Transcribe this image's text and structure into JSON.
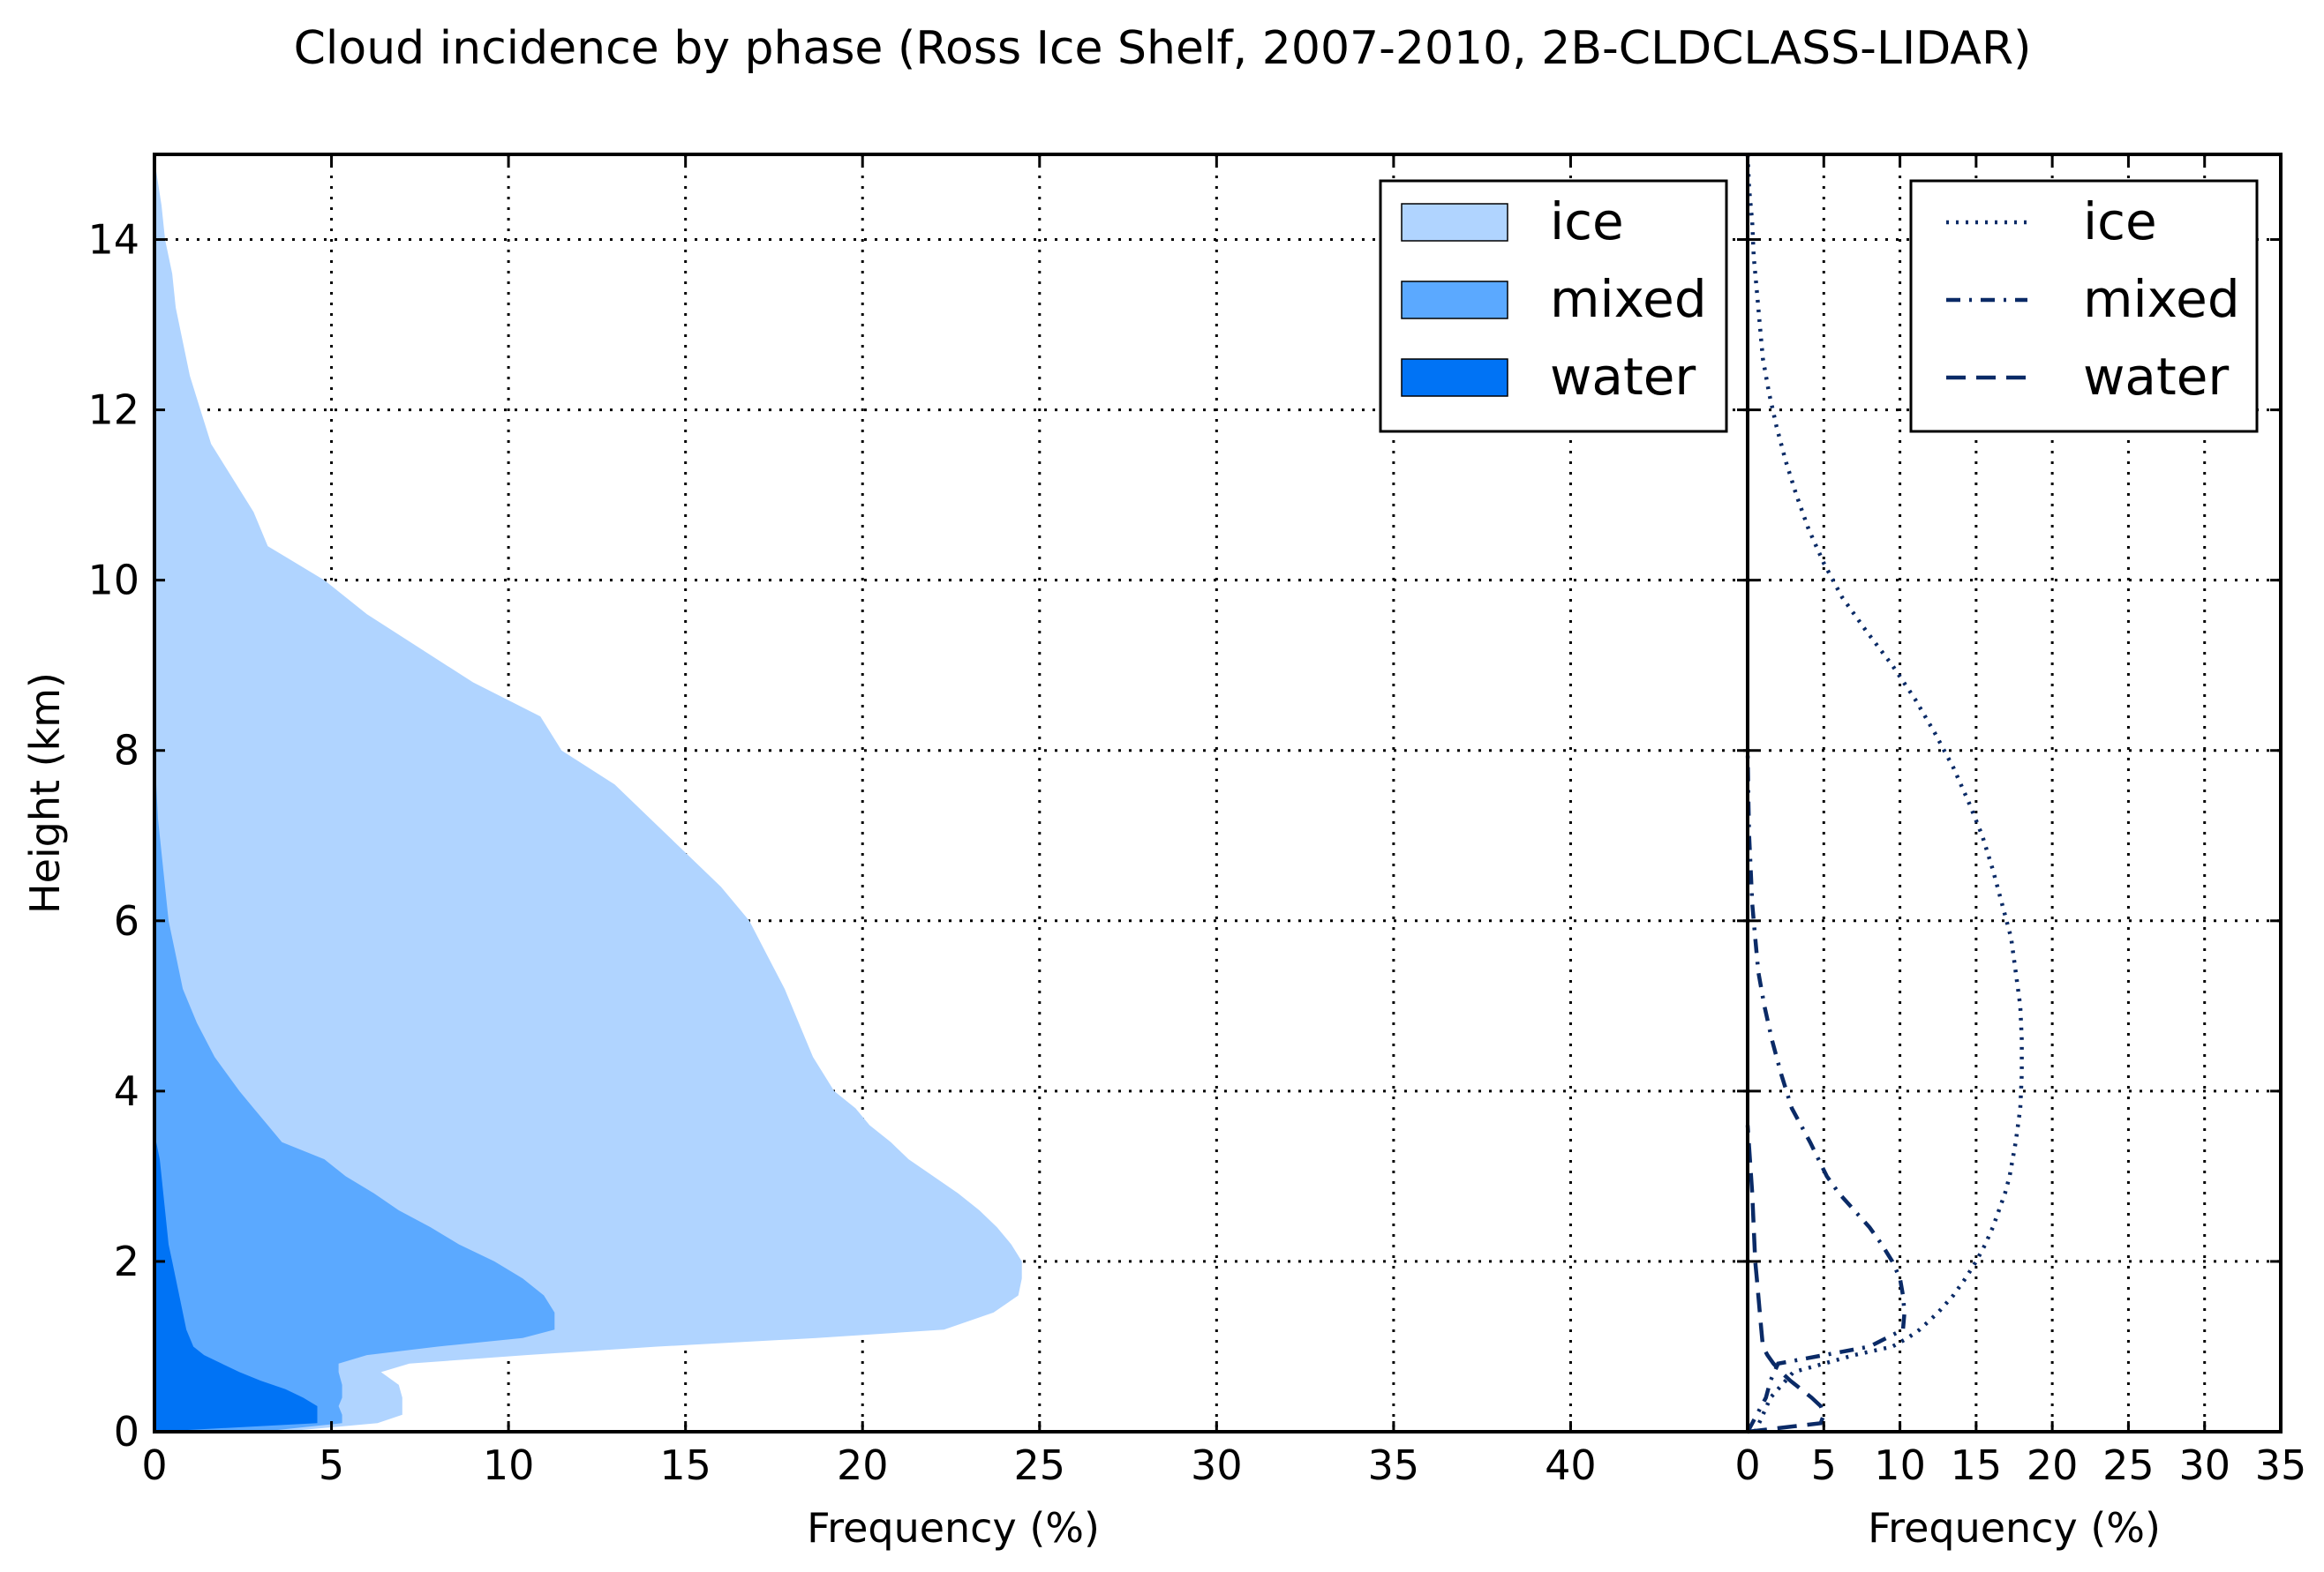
{
  "chart_data": [
    {
      "type": "area",
      "title": "Cloud incidence by phase (Ross Ice Shelf, 2007-2010, 2B-CLDCLASS-LIDAR)",
      "xlabel": "Frequency (%)",
      "ylabel": "Height (km)",
      "xlim": [
        0,
        45
      ],
      "ylim": [
        0,
        15
      ],
      "xticks": [
        0,
        5,
        10,
        15,
        20,
        25,
        30,
        35,
        40
      ],
      "yticks": [
        0,
        2,
        4,
        6,
        8,
        10,
        12,
        14
      ],
      "grid": true,
      "stacked": true,
      "legend_position": "top-right",
      "series": [
        {
          "name": "ice",
          "color": "#b0d4ff",
          "height_km": [
            0.0,
            0.1,
            0.2,
            0.3,
            0.4,
            0.55,
            0.7,
            0.8,
            0.9,
            1.0,
            1.1,
            1.2,
            1.4,
            1.6,
            1.8,
            2.0,
            2.2,
            2.4,
            2.6,
            2.8,
            3.0,
            3.2,
            3.4,
            3.6,
            3.8,
            4.0,
            4.4,
            4.8,
            5.2,
            5.6,
            6.0,
            6.4,
            6.8,
            7.2,
            7.6,
            8.0,
            8.4,
            8.8,
            9.2,
            9.6,
            10.0,
            10.4,
            10.8,
            11.2,
            11.6,
            12.0,
            12.4,
            12.8,
            13.2,
            13.6,
            14.0,
            14.4,
            14.8,
            15.0
          ],
          "cumulative_pct": [
            3.6,
            6.3,
            7.0,
            7.0,
            7.0,
            6.9,
            6.4,
            7.2,
            10.5,
            14.2,
            18.7,
            22.3,
            23.7,
            24.4,
            24.5,
            24.5,
            24.2,
            23.8,
            23.3,
            22.7,
            22.0,
            21.3,
            20.8,
            20.2,
            19.8,
            19.2,
            18.6,
            18.2,
            17.8,
            17.3,
            16.8,
            16.0,
            15.0,
            14.0,
            13.0,
            11.5,
            10.9,
            9.0,
            7.5,
            6.0,
            4.8,
            3.2,
            2.8,
            2.2,
            1.6,
            1.3,
            1.0,
            0.8,
            0.6,
            0.5,
            0.3,
            0.2,
            0.05,
            0.0
          ]
        },
        {
          "name": "mixed",
          "color": "#5ba9ff",
          "height_km": [
            0.0,
            0.1,
            0.2,
            0.3,
            0.4,
            0.55,
            0.7,
            0.8,
            0.9,
            1.0,
            1.1,
            1.2,
            1.4,
            1.6,
            1.8,
            2.0,
            2.2,
            2.4,
            2.6,
            2.8,
            3.0,
            3.2,
            3.4,
            3.6,
            3.8,
            4.0,
            4.4,
            4.8,
            5.2,
            5.6,
            6.0,
            6.4,
            6.8,
            7.2,
            7.6,
            8.0,
            8.2
          ],
          "cumulative_pct": [
            3.0,
            5.3,
            5.3,
            5.2,
            5.3,
            5.3,
            5.2,
            5.2,
            6.0,
            8.0,
            10.4,
            11.3,
            11.3,
            11.0,
            10.4,
            9.6,
            8.6,
            7.8,
            6.9,
            6.2,
            5.4,
            4.8,
            3.6,
            3.2,
            2.8,
            2.4,
            1.7,
            1.2,
            0.8,
            0.6,
            0.4,
            0.3,
            0.2,
            0.1,
            0.05,
            0.02,
            0.0
          ]
        },
        {
          "name": "water",
          "color": "#0073f5",
          "height_km": [
            0.0,
            0.1,
            0.2,
            0.3,
            0.4,
            0.5,
            0.6,
            0.7,
            0.8,
            0.9,
            1.0,
            1.2,
            1.4,
            1.6,
            1.8,
            2.0,
            2.2,
            2.4,
            2.6,
            2.8,
            3.0,
            3.2,
            3.4,
            3.6
          ],
          "cumulative_pct": [
            0.0,
            4.6,
            4.6,
            4.6,
            4.2,
            3.7,
            3.0,
            2.4,
            1.9,
            1.4,
            1.1,
            0.9,
            0.8,
            0.7,
            0.6,
            0.5,
            0.4,
            0.35,
            0.3,
            0.25,
            0.2,
            0.15,
            0.05,
            0.0
          ]
        }
      ]
    },
    {
      "type": "line",
      "xlabel": "Frequency (%)",
      "ylabel": "",
      "xlim": [
        0,
        35
      ],
      "ylim": [
        0,
        15
      ],
      "xticks": [
        0,
        5,
        10,
        15,
        20,
        25,
        30,
        35
      ],
      "yticks": [
        0,
        2,
        4,
        6,
        8,
        10,
        12,
        14
      ],
      "grid": true,
      "legend_position": "top-right",
      "series": [
        {
          "name": "ice",
          "color": "#0a2a66",
          "linestyle": "dotted",
          "height_km": [
            0.0,
            0.2,
            0.4,
            0.6,
            0.7,
            0.8,
            0.9,
            1.0,
            1.1,
            1.2,
            1.4,
            1.6,
            1.8,
            2.0,
            2.2,
            2.4,
            2.6,
            2.8,
            3.0,
            3.4,
            3.8,
            4.2,
            4.6,
            5.0,
            5.4,
            5.8,
            6.2,
            6.6,
            7.0,
            7.4,
            7.8,
            8.2,
            8.6,
            9.0,
            9.4,
            9.8,
            10.2,
            10.6,
            11.0,
            11.4,
            11.8,
            12.2,
            12.6,
            13.0,
            13.4,
            13.8,
            14.2,
            14.6,
            15.0
          ],
          "x_pct": [
            0.5,
            1.0,
            1.5,
            2.5,
            3.0,
            5.0,
            7.0,
            9.5,
            10.5,
            11.3,
            12.5,
            13.5,
            14.3,
            15.0,
            15.6,
            16.1,
            16.5,
            16.9,
            17.2,
            17.6,
            17.9,
            18.0,
            18.0,
            17.9,
            17.6,
            17.3,
            16.7,
            16.1,
            15.4,
            14.5,
            13.5,
            12.3,
            11.0,
            9.5,
            7.8,
            6.2,
            5.0,
            4.0,
            3.2,
            2.5,
            1.9,
            1.4,
            1.0,
            0.8,
            0.6,
            0.4,
            0.3,
            0.1,
            0.0
          ]
        },
        {
          "name": "mixed",
          "color": "#0a2a66",
          "linestyle": "dashdot",
          "height_km": [
            0.0,
            0.2,
            0.4,
            0.6,
            0.8,
            1.0,
            1.2,
            1.4,
            1.6,
            1.8,
            2.0,
            2.2,
            2.4,
            2.6,
            2.8,
            3.0,
            3.4,
            3.8,
            4.2,
            4.6,
            5.0,
            5.4,
            5.8,
            6.2,
            6.6,
            7.0,
            7.4,
            7.8,
            8.0
          ],
          "x_pct": [
            0.0,
            0.6,
            1.2,
            1.5,
            2.0,
            8.0,
            10.2,
            10.3,
            10.2,
            10.0,
            9.5,
            8.8,
            8.0,
            7.0,
            6.0,
            5.2,
            4.1,
            2.9,
            2.2,
            1.6,
            1.1,
            0.7,
            0.5,
            0.3,
            0.2,
            0.1,
            0.05,
            0.02,
            0.0
          ]
        },
        {
          "name": "water",
          "color": "#0a2a66",
          "linestyle": "dashed",
          "height_km": [
            0.0,
            0.1,
            0.2,
            0.3,
            0.4,
            0.5,
            0.6,
            0.7,
            0.8,
            0.9,
            1.0,
            1.2,
            1.4,
            1.6,
            1.8,
            2.0,
            2.4,
            2.8,
            3.2,
            3.6
          ],
          "x_pct": [
            0.0,
            4.8,
            5.0,
            4.8,
            4.2,
            3.5,
            2.8,
            2.2,
            1.7,
            1.3,
            1.0,
            0.9,
            0.8,
            0.7,
            0.6,
            0.5,
            0.4,
            0.3,
            0.15,
            0.0
          ]
        }
      ]
    }
  ]
}
